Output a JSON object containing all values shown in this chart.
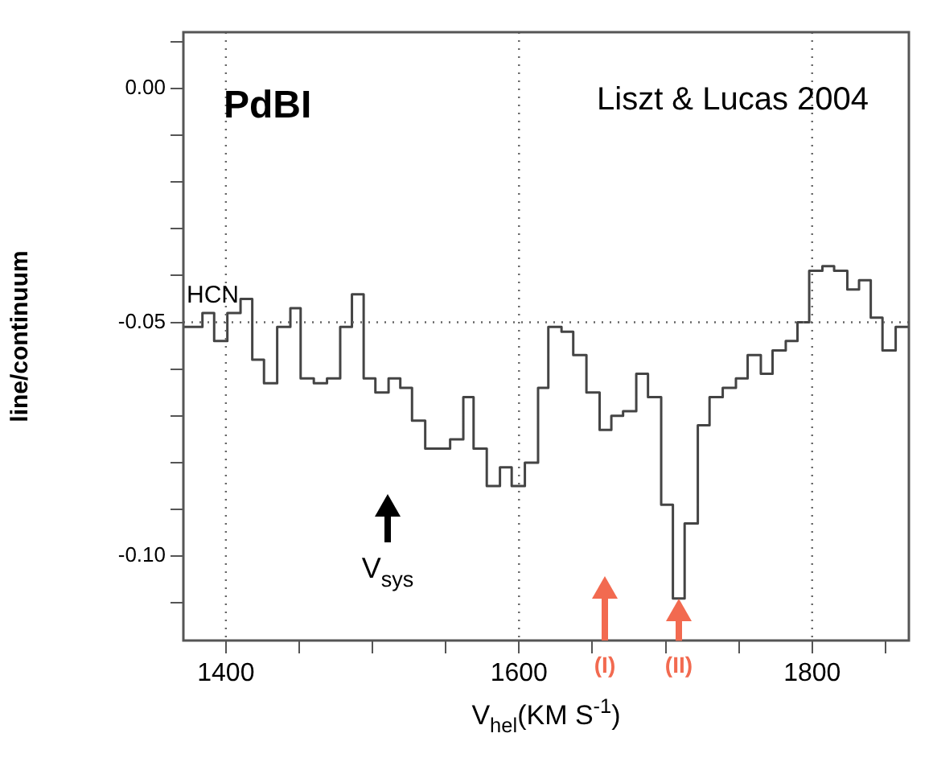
{
  "chart_data": {
    "type": "step",
    "xlabel": "V$_{hel}$(KM S$^{-1}$)",
    "ylabel": "line/continuum",
    "x": [
      1371,
      1384,
      1392,
      1401,
      1410,
      1418,
      1426,
      1435,
      1444,
      1451,
      1460,
      1469,
      1478,
      1486,
      1494,
      1502,
      1511,
      1519,
      1527,
      1536,
      1544,
      1553,
      1562,
      1569,
      1578,
      1587,
      1595,
      1604,
      1613,
      1620,
      1629,
      1637,
      1646,
      1655,
      1663,
      1671,
      1680,
      1688,
      1697,
      1705,
      1713,
      1722,
      1730,
      1739,
      1748,
      1756,
      1765,
      1773,
      1782,
      1790,
      1798,
      1807,
      1815,
      1824,
      1832,
      1840,
      1848,
      1857,
      1866
    ],
    "series": [
      {
        "color": "#444444",
        "values": [
          -0.051,
          -0.048,
          -0.054,
          -0.048,
          -0.045,
          -0.058,
          -0.063,
          -0.051,
          -0.047,
          -0.062,
          -0.063,
          -0.062,
          -0.051,
          -0.044,
          -0.062,
          -0.065,
          -0.062,
          -0.064,
          -0.071,
          -0.077,
          -0.077,
          -0.075,
          -0.066,
          -0.077,
          -0.085,
          -0.081,
          -0.085,
          -0.08,
          -0.064,
          -0.051,
          -0.052,
          -0.057,
          -0.065,
          -0.073,
          -0.07,
          -0.069,
          -0.061,
          -0.066,
          -0.089,
          -0.109,
          -0.093,
          -0.072,
          -0.066,
          -0.064,
          -0.062,
          -0.057,
          -0.061,
          -0.056,
          -0.054,
          -0.05,
          -0.039,
          -0.038,
          -0.039,
          -0.043,
          -0.041,
          -0.049,
          -0.056,
          -0.051,
          -0.051
        ]
      }
    ],
    "xlim": [
      1371,
      1866
    ],
    "ylim": [
      -0.118,
      0.012
    ],
    "xticks": [
      1400,
      {
        "value": 1450,
        "label": null
      },
      {
        "value": 1500,
        "label": null
      },
      {
        "value": 1550,
        "label": null
      },
      1600,
      {
        "value": 1650,
        "label": null
      },
      {
        "value": 1700,
        "label": null
      },
      {
        "value": 1750,
        "label": null
      },
      1800,
      {
        "value": 1850,
        "label": null
      }
    ],
    "yticks": [
      {
        "value": -0.11,
        "label": null
      },
      {
        "value": -0.1,
        "label": "-0.10"
      },
      {
        "value": -0.09,
        "label": null
      },
      {
        "value": -0.08,
        "label": null
      },
      {
        "value": -0.07,
        "label": null
      },
      {
        "value": -0.06,
        "label": null
      },
      {
        "value": -0.05,
        "label": "-0.05"
      },
      {
        "value": -0.04,
        "label": null
      },
      {
        "value": -0.03,
        "label": null
      },
      {
        "value": -0.02,
        "label": null
      },
      {
        "value": -0.01,
        "label": null
      },
      {
        "value": 0,
        "label": "0.00"
      },
      {
        "value": 0.01,
        "label": null
      }
    ],
    "ref_lines": [
      {
        "axis": "y",
        "value": -0.05,
        "line_style": "dotted"
      },
      {
        "axis": "x",
        "value": 1400,
        "line_style": "dotted"
      },
      {
        "axis": "x",
        "value": 1600,
        "line_style": "dotted"
      },
      {
        "axis": "x",
        "value": 1800,
        "line_style": "dotted"
      }
    ],
    "annotations": [
      "PdBI",
      "Liszt & Lucas 2004",
      "HCN",
      "V$_{sys}$",
      "(I)",
      {
        "text": "(II)",
        "x": 1709,
        "y": -0.109
      }
    ],
    "grid": false,
    "legend": false,
    "line_style": "solid",
    "marker": "none"
  }
}
